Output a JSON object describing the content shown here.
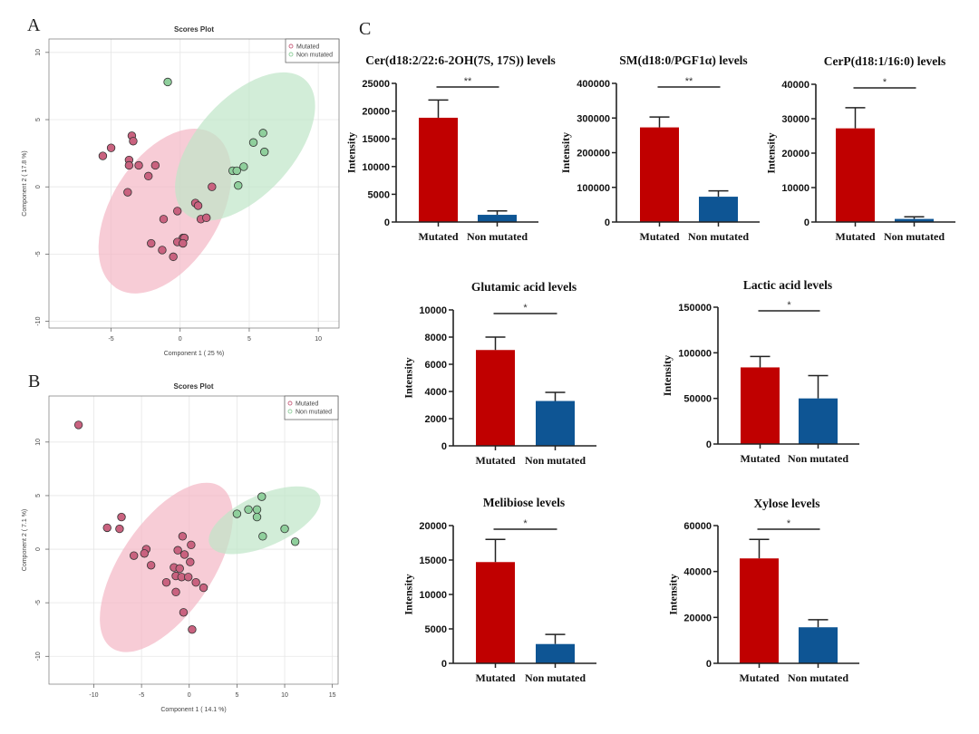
{
  "panels": {
    "A": "A",
    "B": "B",
    "C": "C"
  },
  "colors": {
    "mutated_fill": "#c9627f",
    "mutated_ellipse": "#f4b6c4",
    "nonmutated_fill": "#8fcf9c",
    "nonmutated_ellipse": "#bfe6c8",
    "bar_mutated": "#c00000",
    "bar_nonmutated": "#0e5594"
  },
  "chart_data": [
    {
      "id": "A",
      "type": "scatter",
      "title": "Scores Plot",
      "xlabel": "Component 1 ( 25 %)",
      "ylabel": "Component 2 ( 17.8 %)",
      "xlim": [
        -9.5,
        11.5
      ],
      "ylim": [
        -10.5,
        11
      ],
      "xticks": [
        -5,
        0,
        5,
        10
      ],
      "yticks": [
        -10,
        -5,
        0,
        5,
        10
      ],
      "grid": true,
      "legend": {
        "position": "top-right",
        "entries": [
          "Mutated",
          "Non mutated"
        ]
      },
      "ellipses": [
        {
          "series": "Mutated",
          "cx": -1.1,
          "cy": -1.8,
          "rx": 6.6,
          "ry": 4.0,
          "angle": -58
        },
        {
          "series": "Non mutated",
          "cx": 4.7,
          "cy": 3.0,
          "rx": 6.5,
          "ry": 3.6,
          "angle": -48
        }
      ],
      "series": [
        {
          "name": "Mutated",
          "points": [
            [
              -5.6,
              2.3
            ],
            [
              -5.0,
              2.9
            ],
            [
              -3.5,
              3.8
            ],
            [
              -3.4,
              3.4
            ],
            [
              -3.7,
              2.0
            ],
            [
              -3.7,
              1.6
            ],
            [
              -3.0,
              1.6
            ],
            [
              -1.8,
              1.6
            ],
            [
              -2.3,
              0.8
            ],
            [
              -3.8,
              -0.4
            ],
            [
              2.3,
              0.0
            ],
            [
              1.1,
              -1.2
            ],
            [
              1.3,
              -1.4
            ],
            [
              -0.2,
              -1.8
            ],
            [
              -1.2,
              -2.4
            ],
            [
              1.5,
              -2.4
            ],
            [
              1.9,
              -2.3
            ],
            [
              0.2,
              -3.8
            ],
            [
              0.3,
              -3.8
            ],
            [
              -0.2,
              -4.1
            ],
            [
              0.2,
              -4.2
            ],
            [
              -2.1,
              -4.2
            ],
            [
              -1.3,
              -4.7
            ],
            [
              -0.5,
              -5.2
            ]
          ]
        },
        {
          "name": "Non mutated",
          "points": [
            [
              -0.9,
              7.8
            ],
            [
              6.0,
              4.0
            ],
            [
              5.3,
              3.3
            ],
            [
              6.1,
              2.6
            ],
            [
              4.6,
              1.5
            ],
            [
              3.8,
              1.2
            ],
            [
              4.1,
              1.2
            ],
            [
              4.2,
              0.1
            ]
          ]
        }
      ]
    },
    {
      "id": "B",
      "type": "scatter",
      "title": "Scores Plot",
      "xlabel": "Component 1 ( 14.1 %)",
      "ylabel": "Component 2 ( 7.1 %)",
      "xlim": [
        -14.7,
        15.6
      ],
      "ylim": [
        -12.6,
        14.3
      ],
      "xticks": [
        -10,
        -5,
        0,
        5,
        10,
        15
      ],
      "yticks": [
        -10,
        -5,
        0,
        5,
        10
      ],
      "grid": true,
      "legend": {
        "position": "top-right",
        "entries": [
          "Mutated",
          "Non mutated"
        ]
      },
      "ellipses": [
        {
          "series": "Mutated",
          "cx": -2.4,
          "cy": -1.7,
          "rx": 10.2,
          "ry": 4.3,
          "angle": -56
        },
        {
          "series": "Non mutated",
          "cx": 7.9,
          "cy": 2.7,
          "rx": 6.3,
          "ry": 2.4,
          "angle": -24
        }
      ],
      "series": [
        {
          "name": "Mutated",
          "points": [
            [
              -11.6,
              11.6
            ],
            [
              -7.1,
              3.0
            ],
            [
              -8.6,
              2.0
            ],
            [
              -7.3,
              1.9
            ],
            [
              -0.7,
              1.2
            ],
            [
              0.2,
              0.4
            ],
            [
              -4.5,
              0.0
            ],
            [
              -1.2,
              -0.1
            ],
            [
              -4.7,
              -0.4
            ],
            [
              -0.5,
              -0.5
            ],
            [
              -5.8,
              -0.6
            ],
            [
              0.1,
              -1.2
            ],
            [
              -4.0,
              -1.5
            ],
            [
              -1.6,
              -1.7
            ],
            [
              -1.0,
              -1.8
            ],
            [
              -1.4,
              -2.5
            ],
            [
              -0.8,
              -2.6
            ],
            [
              -0.1,
              -2.6
            ],
            [
              -2.4,
              -3.1
            ],
            [
              0.7,
              -3.1
            ],
            [
              1.5,
              -3.6
            ],
            [
              -1.4,
              -4.0
            ],
            [
              -0.6,
              -5.9
            ],
            [
              0.3,
              -7.5
            ]
          ]
        },
        {
          "name": "Non mutated",
          "points": [
            [
              7.6,
              4.9
            ],
            [
              5.0,
              3.3
            ],
            [
              6.2,
              3.7
            ],
            [
              7.1,
              3.7
            ],
            [
              7.1,
              3.0
            ],
            [
              10.0,
              1.9
            ],
            [
              7.7,
              1.2
            ],
            [
              11.1,
              0.7
            ]
          ]
        }
      ]
    },
    {
      "id": "C1",
      "type": "bar",
      "title": "Cer(d18:2/22:6-2OH(7S, 17S)) levels",
      "ylabel": "Intensity",
      "categories": [
        "Mutated",
        "Non mutated"
      ],
      "values": [
        18800,
        1300
      ],
      "errors": [
        3200,
        700
      ],
      "ylim": [
        0,
        25000
      ],
      "yticks": [
        0,
        5000,
        10000,
        15000,
        20000,
        25000
      ],
      "significance": "**"
    },
    {
      "id": "C2",
      "type": "bar",
      "title": "SM(d18:0/PGF1α) levels",
      "ylabel": "Intensity",
      "categories": [
        "Mutated",
        "Non mutated"
      ],
      "values": [
        273000,
        73000
      ],
      "errors": [
        30000,
        17000
      ],
      "ylim": [
        0,
        400000
      ],
      "yticks": [
        0,
        100000,
        200000,
        300000,
        400000
      ],
      "significance": "**"
    },
    {
      "id": "C3",
      "type": "bar",
      "title": "CerP(d18:1/16:0) levels",
      "ylabel": "Intensity",
      "categories": [
        "Mutated",
        "Non mutated"
      ],
      "values": [
        27200,
        900
      ],
      "errors": [
        6000,
        600
      ],
      "ylim": [
        0,
        40000
      ],
      "yticks": [
        0,
        10000,
        20000,
        30000,
        40000
      ],
      "significance": "*"
    },
    {
      "id": "C4",
      "type": "bar",
      "title": "Glutamic acid levels",
      "ylabel": "Intensity",
      "categories": [
        "Mutated",
        "Non mutated"
      ],
      "values": [
        7050,
        3300
      ],
      "errors": [
        950,
        630
      ],
      "ylim": [
        0,
        10000
      ],
      "yticks": [
        0,
        2000,
        4000,
        6000,
        8000,
        10000
      ],
      "significance": "*"
    },
    {
      "id": "C5",
      "type": "bar",
      "title": "Lactic acid levels",
      "ylabel": "Intensity",
      "categories": [
        "Mutated",
        "Non mutated"
      ],
      "values": [
        84000,
        50000
      ],
      "errors": [
        12000,
        25000
      ],
      "ylim": [
        0,
        150000
      ],
      "yticks": [
        0,
        50000,
        100000,
        150000
      ],
      "significance": "*"
    },
    {
      "id": "C6",
      "type": "bar",
      "title": "Melibiose levels",
      "ylabel": "Intensity",
      "categories": [
        "Mutated",
        "Non mutated"
      ],
      "values": [
        14700,
        2800
      ],
      "errors": [
        3300,
        1400
      ],
      "ylim": [
        0,
        20000
      ],
      "yticks": [
        0,
        5000,
        10000,
        15000,
        20000
      ],
      "significance": "*"
    },
    {
      "id": "C7",
      "type": "bar",
      "title": "Xylose levels",
      "ylabel": "Intensity",
      "categories": [
        "Mutated",
        "Non mutated"
      ],
      "values": [
        45700,
        15700
      ],
      "errors": [
        8300,
        3300
      ],
      "ylim": [
        0,
        60000
      ],
      "yticks": [
        0,
        20000,
        40000,
        60000
      ],
      "significance": "*"
    }
  ]
}
